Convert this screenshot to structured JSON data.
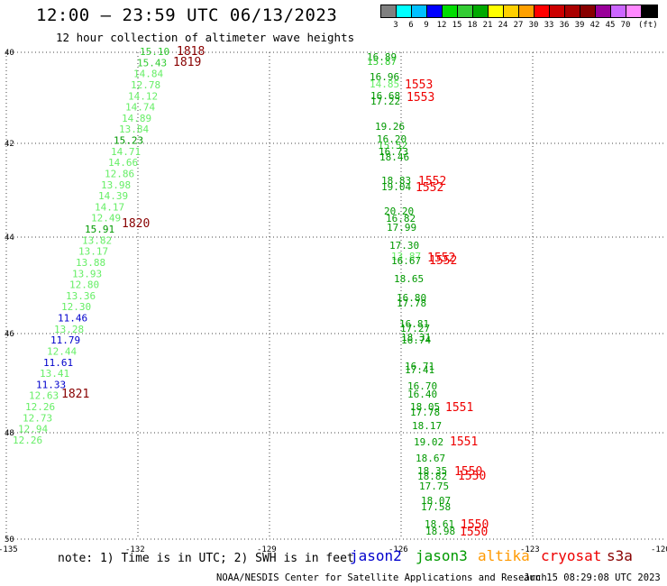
{
  "title": "12:00 — 23:59 UTC 06/13/2023",
  "subtitle": "12 hour collection of altimeter wave heights",
  "legend": {
    "unit": "(ft)",
    "colors": [
      "#808080",
      "#00ffff",
      "#00c0ff",
      "#0000ff",
      "#00dd00",
      "#33cc33",
      "#00aa00",
      "#ffff00",
      "#ffd000",
      "#ffa000",
      "#ff0000",
      "#cc0000",
      "#aa0000",
      "#880000",
      "#990099",
      "#cc66ff",
      "#ff88ff",
      "#000000"
    ],
    "labels": [
      "3",
      "6",
      "9",
      "12",
      "15",
      "18",
      "21",
      "24",
      "27",
      "30",
      "33",
      "36",
      "39",
      "42",
      "45",
      "70"
    ]
  },
  "axes": {
    "lon_ticks": [
      "-135",
      "-132",
      "-129",
      "-126",
      "-123",
      "-120"
    ],
    "lat_ticks": [
      "40",
      "42",
      "44",
      "46",
      "48",
      "50"
    ]
  },
  "tracks": {
    "left_values": [
      {
        "v": "15.10",
        "c": "#33cc33"
      },
      {
        "v": "15.43",
        "c": "#33cc33"
      },
      {
        "v": "14.84",
        "c": "#66ee66"
      },
      {
        "v": "12.78",
        "c": "#66ee66"
      },
      {
        "v": "14.12",
        "c": "#66ee66"
      },
      {
        "v": "14.74",
        "c": "#66ee66"
      },
      {
        "v": "14.89",
        "c": "#66ee66"
      },
      {
        "v": "13.84",
        "c": "#66ee66"
      },
      {
        "v": "15.23",
        "c": "#009900"
      },
      {
        "v": "14.71",
        "c": "#66ee66"
      },
      {
        "v": "14.66",
        "c": "#66ee66"
      },
      {
        "v": "12.86",
        "c": "#66ee66"
      },
      {
        "v": "13.98",
        "c": "#66ee66"
      },
      {
        "v": "14.39",
        "c": "#66ee66"
      },
      {
        "v": "14.17",
        "c": "#66ee66"
      },
      {
        "v": "12.49",
        "c": "#66ee66"
      },
      {
        "v": "15.91",
        "c": "#009900"
      },
      {
        "v": "13.82",
        "c": "#66ee66"
      },
      {
        "v": "13.17",
        "c": "#66ee66"
      },
      {
        "v": "13.88",
        "c": "#66ee66"
      },
      {
        "v": "13.93",
        "c": "#66ee66"
      },
      {
        "v": "12.80",
        "c": "#66ee66"
      },
      {
        "v": "13.36",
        "c": "#66ee66"
      },
      {
        "v": "12.30",
        "c": "#66ee66"
      },
      {
        "v": "11.46",
        "c": "#0000cc"
      },
      {
        "v": "13.28",
        "c": "#66ee66"
      },
      {
        "v": "11.79",
        "c": "#0000cc"
      },
      {
        "v": "12.44",
        "c": "#66ee66"
      },
      {
        "v": "11.61",
        "c": "#0000cc"
      },
      {
        "v": "13.41",
        "c": "#66ee66"
      },
      {
        "v": "11.33",
        "c": "#0000cc"
      },
      {
        "v": "12.63",
        "c": "#66ee66"
      },
      {
        "v": "12.26",
        "c": "#66ee66"
      },
      {
        "v": "12.73",
        "c": "#66ee66"
      },
      {
        "v": "12.94",
        "c": "#66ee66"
      },
      {
        "v": "12.26",
        "c": "#66ee66"
      }
    ],
    "left_times": [
      {
        "t": "1818",
        "c": "#880000"
      },
      {
        "t": "1819",
        "c": "#880000"
      },
      {
        "t": "1820",
        "c": "#880000"
      },
      {
        "t": "1821",
        "c": "#880000"
      }
    ],
    "right_values": [
      {
        "v": "16.89",
        "c": "#009900"
      },
      {
        "v": "15.87",
        "c": "#33cc33"
      },
      {
        "v": "16.96",
        "c": "#009900"
      },
      {
        "v": "14.85",
        "c": "#66ee66"
      },
      {
        "v": "16.68",
        "c": "#009900"
      },
      {
        "v": "17.22",
        "c": "#009900"
      },
      {
        "v": "19.26",
        "c": "#009900"
      },
      {
        "v": "16.20",
        "c": "#009900"
      },
      {
        "v": "15.52",
        "c": "#33cc33"
      },
      {
        "v": "16.73",
        "c": "#009900"
      },
      {
        "v": "18.46",
        "c": "#009900"
      },
      {
        "v": "18.83",
        "c": "#009900"
      },
      {
        "v": "19.04",
        "c": "#009900"
      },
      {
        "v": "20.20",
        "c": "#009900"
      },
      {
        "v": "16.82",
        "c": "#009900"
      },
      {
        "v": "17.99",
        "c": "#009900"
      },
      {
        "v": "17.30",
        "c": "#009900"
      },
      {
        "v": "13.87",
        "c": "#66ee66"
      },
      {
        "v": "16.67",
        "c": "#009900"
      },
      {
        "v": "18.65",
        "c": "#009900"
      },
      {
        "v": "16.80",
        "c": "#009900"
      },
      {
        "v": "17.78",
        "c": "#009900"
      },
      {
        "v": "16.81",
        "c": "#009900"
      },
      {
        "v": "17.27",
        "c": "#009900"
      },
      {
        "v": "18.31",
        "c": "#009900"
      },
      {
        "v": "16.74",
        "c": "#009900"
      },
      {
        "v": "16.71",
        "c": "#009900"
      },
      {
        "v": "17.41",
        "c": "#009900"
      },
      {
        "v": "16.70",
        "c": "#009900"
      },
      {
        "v": "16.40",
        "c": "#009900"
      },
      {
        "v": "18.05",
        "c": "#009900"
      },
      {
        "v": "17.78",
        "c": "#009900"
      },
      {
        "v": "18.17",
        "c": "#009900"
      },
      {
        "v": "19.02",
        "c": "#009900"
      },
      {
        "v": "18.67",
        "c": "#009900"
      },
      {
        "v": "18.35",
        "c": "#009900"
      },
      {
        "v": "18.82",
        "c": "#009900"
      },
      {
        "v": "17.75",
        "c": "#009900"
      },
      {
        "v": "18.07",
        "c": "#009900"
      },
      {
        "v": "17.58",
        "c": "#009900"
      },
      {
        "v": "18.61",
        "c": "#009900"
      },
      {
        "v": "18.98",
        "c": "#009900"
      }
    ],
    "right_times": [
      {
        "t": "1553",
        "c": "#ee0000"
      },
      {
        "t": "1553",
        "c": "#ee0000"
      },
      {
        "t": "1552",
        "c": "#ee0000"
      },
      {
        "t": "1552",
        "c": "#ee0000"
      },
      {
        "t": "1552",
        "c": "#ee0000"
      },
      {
        "t": "1552",
        "c": "#ee0000"
      },
      {
        "t": "1551",
        "c": "#ee0000"
      },
      {
        "t": "1551",
        "c": "#ee0000"
      },
      {
        "t": "1550",
        "c": "#ee0000"
      },
      {
        "t": "1550",
        "c": "#ee0000"
      },
      {
        "t": "1550",
        "c": "#ee0000"
      },
      {
        "t": "1550",
        "c": "#ee0000"
      }
    ]
  },
  "note": "note: 1) Time is in UTC; 2) SWH is in feet",
  "satellites": [
    {
      "name": "jason2",
      "color": "#0000cc"
    },
    {
      "name": "jason3",
      "color": "#009900"
    },
    {
      "name": "altika",
      "color": "#ff9900"
    },
    {
      "name": "cryosat",
      "color": "#ee0000"
    },
    {
      "name": "s3a",
      "color": "#880000"
    }
  ],
  "footer_left": "NOAA/NESDIS Center for Satellite Applications and Research",
  "footer_right": "Jun 15 08:29:08 UTC 2023"
}
